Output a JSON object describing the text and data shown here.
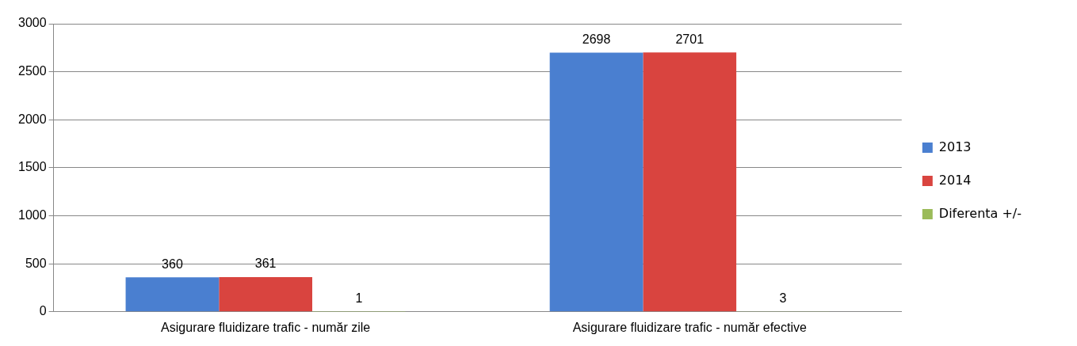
{
  "chart_data": {
    "type": "bar",
    "categories": [
      "Asigurare fluidizare trafic - număr zile",
      "Asigurare fluidizare trafic - număr efective"
    ],
    "series": [
      {
        "name": "2013",
        "color": "#4a7fd0",
        "values": [
          360,
          2698
        ]
      },
      {
        "name": "2014",
        "color": "#d9443f",
        "values": [
          361,
          2701
        ]
      },
      {
        "name": "Diferenta +/-",
        "color": "#9bbb59",
        "values": [
          1,
          3
        ]
      }
    ],
    "ylim": [
      0,
      3000
    ],
    "yticks": [
      0,
      500,
      1000,
      1500,
      2000,
      2500,
      3000
    ],
    "grid": "y",
    "legend": "right",
    "data_labels": true
  }
}
